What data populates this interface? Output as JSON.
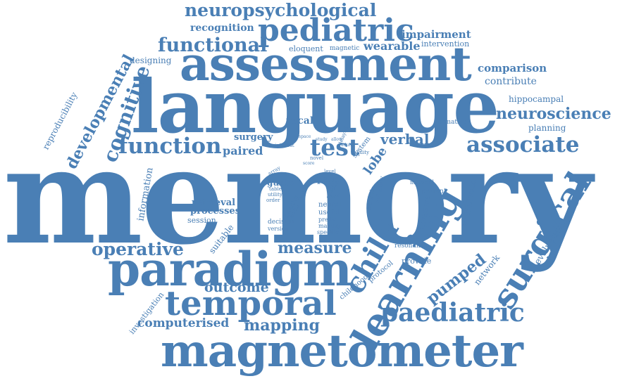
{
  "cloud": {
    "color": "#4a7fb5",
    "words": [
      {
        "text": "memory"
      },
      {
        "text": "language"
      },
      {
        "text": "assessment"
      },
      {
        "text": "magnetometer"
      },
      {
        "text": "paradigm"
      },
      {
        "text": "pediatric"
      },
      {
        "text": "learning"
      },
      {
        "text": "temporal"
      },
      {
        "text": "surgical"
      },
      {
        "text": "neuropsychological"
      },
      {
        "text": "functional"
      },
      {
        "text": "function"
      },
      {
        "text": "associate"
      },
      {
        "text": "neuroscience"
      },
      {
        "text": "paediatric"
      },
      {
        "text": "child"
      },
      {
        "text": "operative"
      },
      {
        "text": "cognitive"
      },
      {
        "text": "developmental"
      },
      {
        "text": "test"
      },
      {
        "text": "measure"
      },
      {
        "text": "mapping"
      },
      {
        "text": "computerised"
      },
      {
        "text": "outcome"
      },
      {
        "text": "pumped"
      },
      {
        "text": "comparison"
      },
      {
        "text": "contribute"
      },
      {
        "text": "impairment"
      },
      {
        "text": "recognition"
      },
      {
        "text": "wearable"
      },
      {
        "text": "intervention"
      },
      {
        "text": "magnetic"
      },
      {
        "text": "eloquent"
      },
      {
        "text": "designing"
      },
      {
        "text": "reproducibility"
      },
      {
        "text": "hippocampal"
      },
      {
        "text": "planning"
      },
      {
        "text": "normative"
      },
      {
        "text": "recall"
      },
      {
        "text": "surgery"
      },
      {
        "text": "paired"
      },
      {
        "text": "verbal"
      },
      {
        "text": "lobe"
      },
      {
        "text": "information"
      },
      {
        "text": "retrieval"
      },
      {
        "text": "processes"
      },
      {
        "text": "session"
      },
      {
        "text": "suitable"
      },
      {
        "text": "network"
      },
      {
        "text": "evaluation"
      },
      {
        "text": "lateralisation"
      },
      {
        "text": "investigation"
      },
      {
        "text": "resonance"
      },
      {
        "text": "provide"
      },
      {
        "text": "patient"
      },
      {
        "text": "material"
      },
      {
        "text": "invasive"
      },
      {
        "text": "childhood"
      },
      {
        "text": "protocol"
      },
      {
        "text": "system"
      },
      {
        "text": "clinical"
      },
      {
        "text": "reliability"
      },
      {
        "text": "guide"
      },
      {
        "text": "pair"
      },
      {
        "text": "year"
      },
      {
        "text": "neural"
      },
      {
        "text": "useful"
      },
      {
        "text": "predict"
      },
      {
        "text": "making"
      },
      {
        "text": "specific"
      },
      {
        "text": "decision"
      },
      {
        "text": "version"
      },
      {
        "text": "healthy"
      },
      {
        "text": "status"
      },
      {
        "text": "interest"
      },
      {
        "text": "novel"
      },
      {
        "text": "validity"
      },
      {
        "text": "delayed"
      },
      {
        "text": "level"
      },
      {
        "text": "array"
      },
      {
        "text": "tablet"
      },
      {
        "text": "utility"
      },
      {
        "text": "order"
      },
      {
        "text": "study"
      },
      {
        "text": "allow"
      },
      {
        "text": "adult"
      },
      {
        "text": "aged"
      },
      {
        "text": "cohort"
      },
      {
        "text": "space"
      },
      {
        "text": "score"
      },
      {
        "text": "task"
      }
    ]
  }
}
